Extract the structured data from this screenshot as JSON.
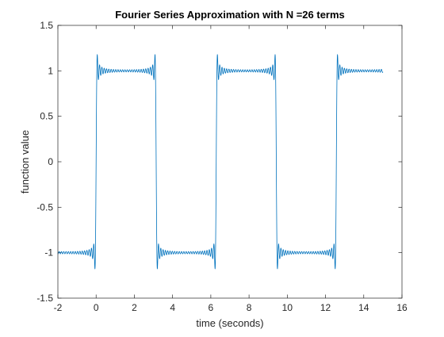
{
  "chart_data": {
    "type": "line",
    "title": "Fourier Series Approximation with N =26 terms",
    "xlabel": "time (seconds)",
    "ylabel": "function value",
    "xlim": [
      -2,
      16
    ],
    "ylim": [
      -1.5,
      1.5
    ],
    "xticks": [
      -2,
      0,
      2,
      4,
      6,
      8,
      10,
      12,
      14,
      16
    ],
    "yticks": [
      -1.5,
      -1,
      -0.5,
      0,
      0.5,
      1,
      1.5
    ],
    "xtick_labels": [
      "-2",
      "0",
      "2",
      "4",
      "6",
      "8",
      "10",
      "12",
      "14",
      "16"
    ],
    "ytick_labels": [
      "-1.5",
      "-1",
      "-0.5",
      "0",
      "0.5",
      "1",
      "1.5"
    ],
    "grid": false,
    "box": true,
    "series": [
      {
        "function": "square wave partial Fourier sum, odd harmonics",
        "terms": 26,
        "period": 6.2832,
        "amplitude": 1,
        "x_range": [
          -2,
          15
        ],
        "color": "#0072bd"
      }
    ]
  }
}
